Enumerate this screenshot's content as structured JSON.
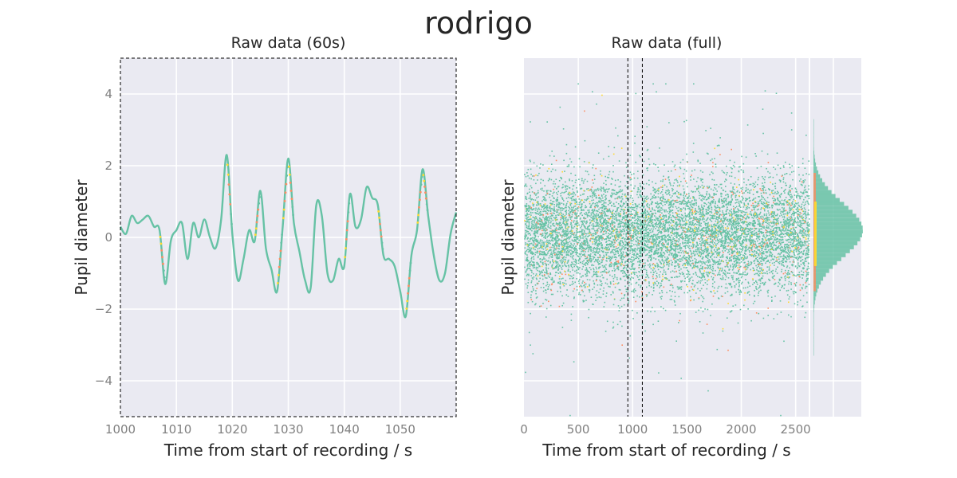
{
  "figure": {
    "title": "rodrigo"
  },
  "colors": {
    "valid": "#66c2a5",
    "orange": "#fc8d62",
    "yellow": "#ffd92f",
    "axes_bg": "#eaeaf2"
  },
  "chart_data": [
    {
      "type": "line",
      "title": "Raw data (60s)",
      "xlabel": "Time from start of recording / s",
      "ylabel": "Pupil diameter",
      "xlim": [
        1000,
        1060
      ],
      "ylim": [
        -5,
        5
      ],
      "xticks": [
        1000,
        1010,
        1020,
        1030,
        1040,
        1050
      ],
      "yticks": [
        4,
        2,
        0,
        -2,
        -4
      ],
      "ytick_labels": [
        "4",
        "2",
        "0",
        "−2",
        "−4"
      ],
      "grid": true,
      "box_style": "dashed",
      "series": [
        {
          "x": [
            1000,
            1001,
            1002,
            1003,
            1004,
            1005,
            1006,
            1007,
            1008,
            1009,
            1010,
            1011,
            1012,
            1013,
            1014,
            1015,
            1016,
            1017,
            1018,
            1019,
            1020,
            1021,
            1022,
            1023,
            1024,
            1025,
            1026,
            1027,
            1028,
            1029,
            1030,
            1031,
            1032,
            1033,
            1034,
            1035,
            1036,
            1037,
            1038,
            1039,
            1040,
            1041,
            1042,
            1043,
            1044,
            1045,
            1046,
            1047,
            1048,
            1049,
            1050,
            1051,
            1052,
            1053,
            1054,
            1055,
            1056,
            1057,
            1058,
            1059,
            1060
          ],
          "y": [
            0.3,
            0.1,
            0.6,
            0.4,
            0.5,
            0.6,
            0.3,
            0.2,
            -1.3,
            -0.1,
            0.2,
            0.4,
            -0.6,
            0.4,
            0.0,
            0.5,
            0.0,
            -0.3,
            0.5,
            2.3,
            0.1,
            -1.2,
            -0.6,
            0.2,
            -0.1,
            1.3,
            -0.3,
            -0.9,
            -1.5,
            0.3,
            2.2,
            0.4,
            -0.4,
            -1.2,
            -1.4,
            0.9,
            0.6,
            -1.0,
            -1.2,
            -0.6,
            -0.8,
            1.2,
            0.3,
            0.5,
            1.4,
            1.1,
            0.9,
            -0.5,
            -0.6,
            -0.8,
            -1.5,
            -2.2,
            -0.5,
            0.2,
            1.9,
            0.6,
            -0.5,
            -1.2,
            -1.0,
            0.1,
            0.7
          ]
        }
      ]
    },
    {
      "type": "scatter",
      "title": "Raw data (full)",
      "xlabel": "Time from start of recording / s",
      "ylabel": "Pupil diameter",
      "xlim": [
        0,
        2620
      ],
      "ylim": [
        -5,
        5
      ],
      "xticks": [
        0,
        500,
        1000,
        1500,
        2000,
        2500
      ],
      "yticks": [
        4,
        2,
        0,
        -2,
        -4
      ],
      "show_ytick_labels": false,
      "grid": true,
      "highlight_window": [
        1000,
        1060
      ],
      "n_points": 9000,
      "center": 0.1,
      "spread": 0.8,
      "orange_fraction": 0.04,
      "yellow_fraction": 0.03,
      "histogram": {
        "orientation": "horizontal",
        "bins": 60,
        "range": [
          -3.3,
          3.3
        ],
        "peak": 0.2,
        "sd": 0.75
      }
    }
  ]
}
